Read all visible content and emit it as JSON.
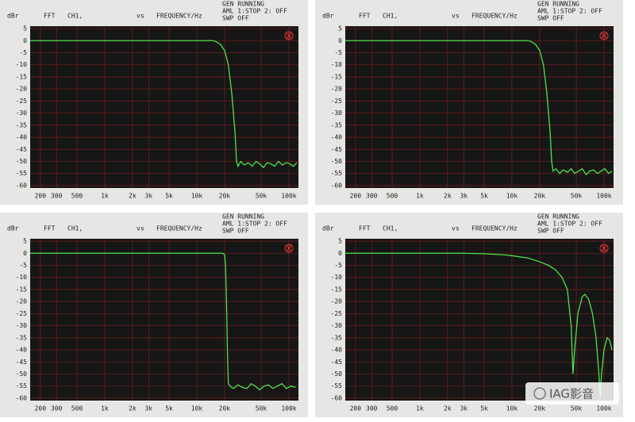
{
  "watermark": "IAG影音",
  "chart_data": [
    {
      "type": "line",
      "y_label": "dBr",
      "analyzer": "FFT",
      "channel": "CH1,",
      "vs": "vs",
      "x_label": "FREQUENCY/Hz",
      "status": [
        "GEN RUNNING",
        "AML 1:STOP 2: OFF",
        "SWP OFF"
      ],
      "xscale": "log",
      "grid": true,
      "color": "#4be34b",
      "xlim": [
        155,
        127000
      ],
      "ylim": [
        -61,
        6
      ],
      "xticks": [
        200,
        300,
        500,
        {
          "value": 1000,
          "label": "1k"
        },
        {
          "value": 2000,
          "label": "2k"
        },
        {
          "value": 3000,
          "label": "3k"
        },
        {
          "value": 5000,
          "label": "5k"
        },
        {
          "value": 10000,
          "label": "10k"
        },
        {
          "value": 20000,
          "label": "20k"
        },
        {
          "value": 50000,
          "label": "50k"
        },
        {
          "value": 100000,
          "label": "100k"
        }
      ],
      "yticks": [
        5,
        0,
        -5,
        -10,
        -15,
        -20,
        -25,
        -30,
        -35,
        -40,
        -45,
        -50,
        -55,
        -60
      ],
      "x": [
        155,
        1000,
        10000,
        15000,
        16000,
        18000,
        20000,
        22000,
        24000,
        26000,
        27000,
        28000,
        30000,
        33000,
        36000,
        40000,
        44000,
        48000,
        53000,
        58000,
        64000,
        70000,
        77000,
        85000,
        93000,
        102000,
        112000,
        122000
      ],
      "values": [
        0,
        0,
        0,
        0,
        -0.3,
        -1.5,
        -4,
        -10,
        -22,
        -38,
        -50,
        -52,
        -50,
        -51.5,
        -50.5,
        -52,
        -50,
        -51,
        -52.5,
        -50.5,
        -51,
        -52,
        -50,
        -51.5,
        -50.5,
        -51,
        -52,
        -50.5
      ]
    },
    {
      "type": "line",
      "y_label": "dBr",
      "analyzer": "FFT",
      "channel": "CH1,",
      "vs": "vs",
      "x_label": "FREQUENCY/Hz",
      "status": [
        "GEN RUNNING",
        "AML 1:STOP 2: OFF",
        "SWP OFF"
      ],
      "xscale": "log",
      "grid": true,
      "color": "#4be34b",
      "xlim": [
        155,
        127000
      ],
      "ylim": [
        -61,
        6
      ],
      "xticks": [
        200,
        300,
        500,
        {
          "value": 1000,
          "label": "1k"
        },
        {
          "value": 2000,
          "label": "2k"
        },
        {
          "value": 3000,
          "label": "3k"
        },
        {
          "value": 5000,
          "label": "5k"
        },
        {
          "value": 10000,
          "label": "10k"
        },
        {
          "value": 20000,
          "label": "20k"
        },
        {
          "value": 50000,
          "label": "50k"
        },
        {
          "value": 100000,
          "label": "100k"
        }
      ],
      "yticks": [
        5,
        0,
        -5,
        -10,
        -15,
        -20,
        -25,
        -30,
        -35,
        -40,
        -45,
        -50,
        -55,
        -60
      ],
      "x": [
        155,
        1000,
        10000,
        15000,
        16000,
        18000,
        20000,
        22000,
        24000,
        26000,
        27000,
        28000,
        30000,
        33000,
        36000,
        40000,
        44000,
        48000,
        53000,
        58000,
        64000,
        70000,
        77000,
        85000,
        93000,
        102000,
        112000,
        122000
      ],
      "values": [
        0,
        0,
        0,
        0,
        -0.3,
        -1.5,
        -4,
        -10,
        -22,
        -38,
        -50,
        -54,
        -53,
        -55,
        -53.5,
        -54.5,
        -53,
        -55,
        -54,
        -53,
        -55.5,
        -54,
        -53.5,
        -55,
        -54,
        -53,
        -55,
        -54
      ]
    },
    {
      "type": "line",
      "y_label": "dBr",
      "analyzer": "FFT",
      "channel": "CH1,",
      "vs": "vs",
      "x_label": "FREQUENCY/Hz",
      "status": [
        "GEN RUNNING",
        "AML 1:STOP 2: OFF",
        "SWP OFF"
      ],
      "xscale": "log",
      "grid": true,
      "color": "#4be34b",
      "xlim": [
        155,
        127000
      ],
      "ylim": [
        -61,
        6
      ],
      "xticks": [
        200,
        300,
        500,
        {
          "value": 1000,
          "label": "1k"
        },
        {
          "value": 2000,
          "label": "2k"
        },
        {
          "value": 3000,
          "label": "3k"
        },
        {
          "value": 5000,
          "label": "5k"
        },
        {
          "value": 10000,
          "label": "10k"
        },
        {
          "value": 20000,
          "label": "20k"
        },
        {
          "value": 50000,
          "label": "50k"
        },
        {
          "value": 100000,
          "label": "100k"
        }
      ],
      "yticks": [
        5,
        0,
        -5,
        -10,
        -15,
        -20,
        -25,
        -30,
        -35,
        -40,
        -45,
        -50,
        -55,
        -60
      ],
      "x": [
        155,
        1000,
        10000,
        19000,
        20000,
        20500,
        21000,
        21500,
        22000,
        23000,
        25000,
        28000,
        31000,
        35000,
        39000,
        43000,
        48000,
        54000,
        60000,
        67000,
        75000,
        84000,
        94000,
        105000,
        118000
      ],
      "values": [
        0,
        0,
        0,
        0,
        -0.5,
        -5,
        -20,
        -40,
        -54,
        -55,
        -56,
        -54.5,
        -55.5,
        -56,
        -54,
        -55,
        -56.5,
        -55,
        -54.5,
        -56,
        -55,
        -54,
        -56,
        -55,
        -55.5
      ]
    },
    {
      "type": "line",
      "y_label": "dBr",
      "analyzer": "FFT",
      "channel": "CH1,",
      "vs": "vs",
      "x_label": "FREQUENCY/Hz",
      "status": [
        "GEN RUNNING",
        "AML 1:STOP 2: OFF",
        "SWP OFF"
      ],
      "xscale": "log",
      "grid": true,
      "color": "#4be34b",
      "xlim": [
        155,
        127000
      ],
      "ylim": [
        -61,
        6
      ],
      "xticks": [
        200,
        300,
        500,
        {
          "value": 1000,
          "label": "1k"
        },
        {
          "value": 2000,
          "label": "2k"
        },
        {
          "value": 3000,
          "label": "3k"
        },
        {
          "value": 5000,
          "label": "5k"
        },
        {
          "value": 10000,
          "label": "10k"
        },
        {
          "value": 20000,
          "label": "20k"
        },
        {
          "value": 50000,
          "label": "50k"
        },
        {
          "value": 100000,
          "label": "100k"
        }
      ],
      "yticks": [
        5,
        0,
        -5,
        -10,
        -15,
        -20,
        -25,
        -30,
        -35,
        -40,
        -45,
        -50,
        -55,
        -60
      ],
      "x": [
        155,
        1000,
        3000,
        5000,
        8000,
        10000,
        15000,
        20000,
        25000,
        30000,
        35000,
        40000,
        44000,
        46000,
        48000,
        52000,
        58000,
        62000,
        68000,
        75000,
        82000,
        88000,
        91000,
        94000,
        100000,
        108000,
        115000,
        122000
      ],
      "values": [
        0,
        0,
        0,
        -0.2,
        -0.6,
        -1,
        -2,
        -3.5,
        -5,
        -7,
        -10,
        -15,
        -30,
        -50,
        -40,
        -25,
        -18,
        -17,
        -19,
        -25,
        -35,
        -50,
        -60,
        -50,
        -40,
        -35,
        -36,
        -40
      ]
    }
  ]
}
